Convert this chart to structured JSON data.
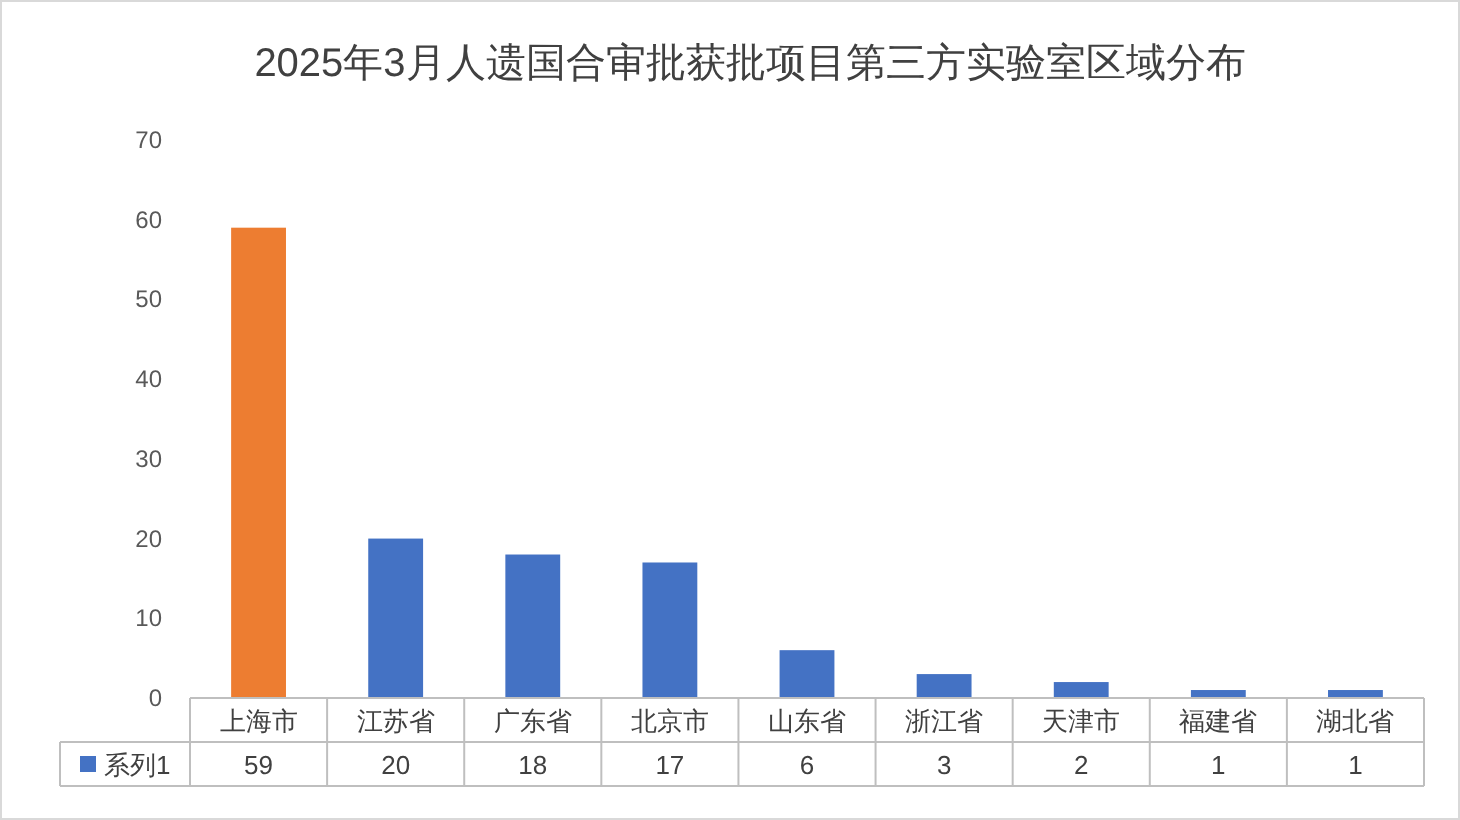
{
  "chart_data": {
    "type": "bar",
    "title": "2025年3月人遗国合审批获批项目第三方实验室区域分布",
    "categories": [
      "上海市",
      "江苏省",
      "广东省",
      "北京市",
      "山东省",
      "浙江省",
      "天津市",
      "福建省",
      "湖北省"
    ],
    "series": [
      {
        "name": "系列1",
        "color": "#4472c4",
        "colors": [
          "#ed7d31",
          "#4472c4",
          "#4472c4",
          "#4472c4",
          "#4472c4",
          "#4472c4",
          "#4472c4",
          "#4472c4",
          "#4472c4"
        ],
        "values": [
          59,
          20,
          18,
          17,
          6,
          3,
          2,
          1,
          1
        ]
      }
    ],
    "ylim": [
      0,
      70
    ],
    "yticks": [
      0,
      10,
      20,
      30,
      40,
      50,
      60,
      70
    ],
    "grid": false,
    "data_labels": true,
    "legend": "bottom left"
  }
}
